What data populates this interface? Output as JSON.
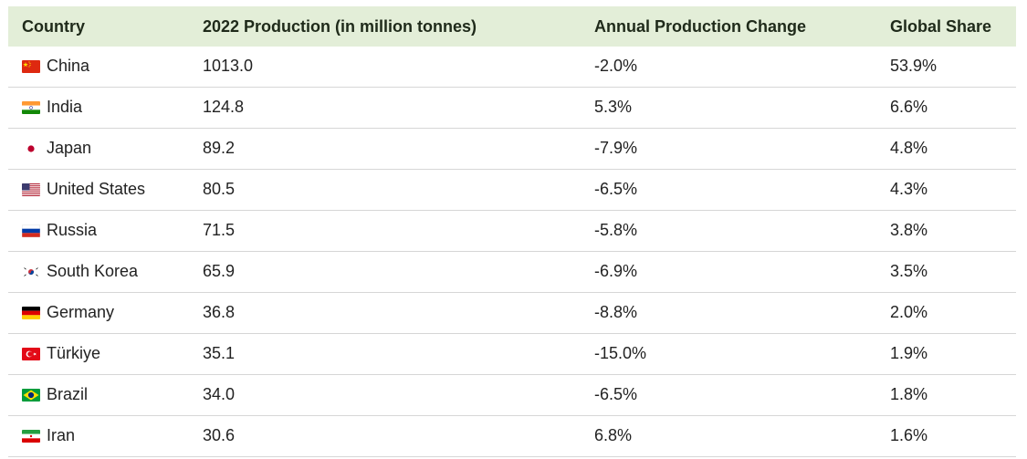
{
  "table": {
    "headers": {
      "country": "Country",
      "production": "2022 Production (in million tonnes)",
      "change": "Annual Production Change",
      "share": "Global Share"
    },
    "rows": [
      {
        "country": "China",
        "flag": "china-flag-icon",
        "production": "1013.0",
        "change": "-2.0%",
        "share": "53.9%"
      },
      {
        "country": "India",
        "flag": "india-flag-icon",
        "production": "124.8",
        "change": "5.3%",
        "share": "6.6%"
      },
      {
        "country": "Japan",
        "flag": "japan-flag-icon",
        "production": "89.2",
        "change": "-7.9%",
        "share": "4.8%"
      },
      {
        "country": "United States",
        "flag": "united-states-flag-icon",
        "production": "80.5",
        "change": "-6.5%",
        "share": "4.3%"
      },
      {
        "country": "Russia",
        "flag": "russia-flag-icon",
        "production": "71.5",
        "change": "-5.8%",
        "share": "3.8%"
      },
      {
        "country": "South Korea",
        "flag": "south-korea-flag-icon",
        "production": "65.9",
        "change": "-6.9%",
        "share": "3.5%"
      },
      {
        "country": "Germany",
        "flag": "germany-flag-icon",
        "production": "36.8",
        "change": "-8.8%",
        "share": "2.0%"
      },
      {
        "country": "Türkiye",
        "flag": "turkiye-flag-icon",
        "production": "35.1",
        "change": "-15.0%",
        "share": "1.9%"
      },
      {
        "country": "Brazil",
        "flag": "brazil-flag-icon",
        "production": "34.0",
        "change": "-6.5%",
        "share": "1.8%"
      },
      {
        "country": "Iran",
        "flag": "iran-flag-icon",
        "production": "30.6",
        "change": "6.8%",
        "share": "1.6%"
      }
    ]
  },
  "colors": {
    "header_background": "#e3eed8",
    "row_divider": "#d6d6d6",
    "text": "#222222"
  }
}
